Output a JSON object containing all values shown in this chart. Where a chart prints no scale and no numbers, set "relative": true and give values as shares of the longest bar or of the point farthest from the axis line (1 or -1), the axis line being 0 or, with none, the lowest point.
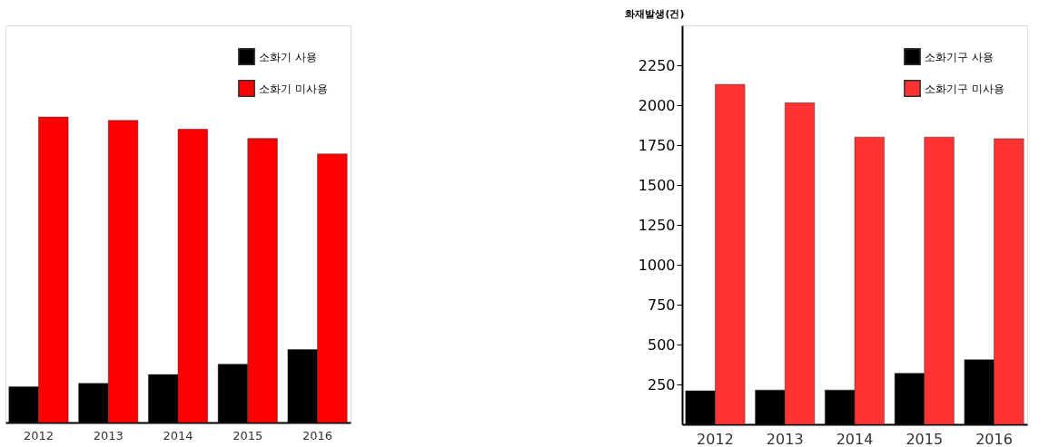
{
  "chart_data": [
    {
      "type": "bar",
      "relative": true,
      "categories": [
        "2012",
        "2013",
        "2014",
        "2015",
        "2016"
      ],
      "legend": "top right",
      "series": [
        {
          "name": "소화기 사용",
          "color": "#000000",
          "values": [
            0.117,
            0.128,
            0.157,
            0.191,
            0.239
          ]
        },
        {
          "name": "소화기 미사용",
          "color": "#ff0000",
          "values": [
            1,
            0.989,
            0.96,
            0.93,
            0.879
          ]
        }
      ]
    },
    {
      "type": "bar",
      "ylabel": "화재발생(건)",
      "categories": [
        "2012",
        "2013",
        "2014",
        "2015",
        "2016"
      ],
      "legend": "top right",
      "ylim": [
        0,
        2500
      ],
      "yticks": [
        250,
        500,
        750,
        1000,
        1250,
        1500,
        1750,
        2000,
        2250
      ],
      "series": [
        {
          "name": "소화기구 사용",
          "color": "#000000",
          "values": [
            210,
            215,
            215,
            320,
            405
          ]
        },
        {
          "name": "소화기구 미사용",
          "color": "#ff3333",
          "values": [
            2130,
            2015,
            1800,
            1800,
            1790
          ]
        }
      ]
    }
  ]
}
